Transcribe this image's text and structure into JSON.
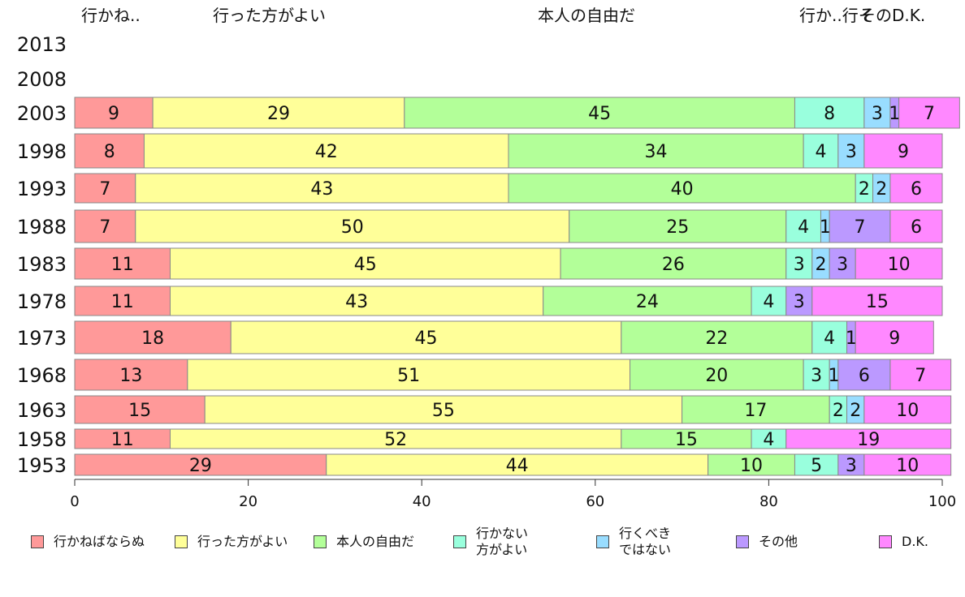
{
  "chart_data": {
    "type": "bar",
    "orientation": "horizontal",
    "stacked": true,
    "categories": [
      "2013",
      "2008",
      "2003",
      "1998",
      "1993",
      "1988",
      "1983",
      "1978",
      "1973",
      "1968",
      "1963",
      "1958",
      "1953"
    ],
    "top_labels": [
      "行かね..",
      "行った方がよい",
      "本人の自由だ",
      "行か..行そ",
      "その",
      "D.K."
    ],
    "series": [
      {
        "name": "行かねばならぬ",
        "color": "#ff9999",
        "values": [
          null,
          null,
          9,
          8,
          7,
          7,
          11,
          11,
          18,
          13,
          15,
          11,
          29
        ]
      },
      {
        "name": "行った方がよい",
        "color": "#ffff99",
        "values": [
          null,
          null,
          29,
          42,
          43,
          50,
          45,
          43,
          45,
          51,
          55,
          52,
          44
        ]
      },
      {
        "name": "本人の自由だ",
        "color": "#b3ff99",
        "values": [
          null,
          null,
          45,
          34,
          40,
          25,
          26,
          24,
          22,
          20,
          17,
          15,
          10
        ]
      },
      {
        "name": "行かない\n方がよい",
        "color": "#99ffdd",
        "values": [
          null,
          null,
          8,
          4,
          2,
          4,
          3,
          4,
          4,
          3,
          2,
          4,
          5
        ]
      },
      {
        "name": "行くべき\nではない",
        "color": "#99ddff",
        "values": [
          null,
          null,
          3,
          3,
          2,
          1,
          2,
          0,
          0,
          1,
          2,
          0,
          0
        ]
      },
      {
        "name": "その他",
        "color": "#bb99ff",
        "values": [
          null,
          null,
          1,
          0,
          0,
          7,
          3,
          3,
          1,
          6,
          0,
          0,
          3
        ]
      },
      {
        "name": "D.K.",
        "color": "#ff88ff",
        "values": [
          null,
          null,
          7,
          9,
          6,
          6,
          10,
          15,
          9,
          7,
          10,
          19,
          10
        ]
      }
    ],
    "xlim": [
      0,
      100
    ],
    "xticks": [
      0,
      20,
      40,
      60,
      80,
      100
    ],
    "grid": false,
    "legend_position": "bottom"
  }
}
